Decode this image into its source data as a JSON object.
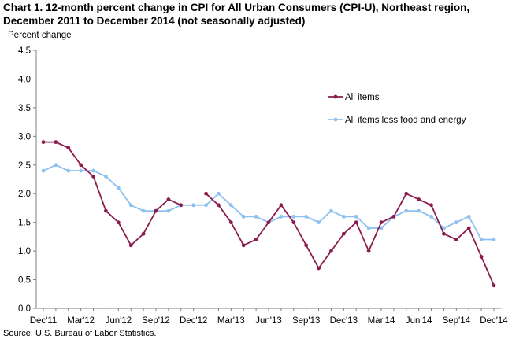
{
  "title": {
    "line1": "Chart 1. 12-month percent change in CPI for All Urban Consumers (CPI-U), Northeast region,",
    "line2": "December 2011 to December 2014 (not seasonally adjusted)"
  },
  "source": "Source: U.S. Bureau of Labor Statistics.",
  "colors": {
    "all_items": "#8b1c4f",
    "core": "#8ec0f0",
    "axis": "#808080"
  },
  "chart_data": {
    "type": "line",
    "ylabel": "Percent change",
    "xlabel": "",
    "ylim": [
      0,
      4.5
    ],
    "yticks": [
      "0.0",
      "0.5",
      "1.0",
      "1.5",
      "2.0",
      "2.5",
      "3.0",
      "3.5",
      "4.0",
      "4.5"
    ],
    "x": [
      "Dec'11",
      "Jan'12",
      "Feb'12",
      "Mar'12",
      "Apr'12",
      "May'12",
      "Jun'12",
      "Jul'12",
      "Aug'12",
      "Sep'12",
      "Oct'12",
      "Nov'12",
      "Dec'12",
      "Jan'13",
      "Feb'13",
      "Mar'13",
      "Apr'13",
      "May'13",
      "Jun'13",
      "Jul'13",
      "Aug'13",
      "Sep'13",
      "Oct'13",
      "Nov'13",
      "Dec'13",
      "Jan'14",
      "Feb'14",
      "Mar'14",
      "Apr'14",
      "May'14",
      "Jun'14",
      "Jul'14",
      "Aug'14",
      "Sep'14",
      "Oct'14",
      "Nov'14",
      "Dec'14"
    ],
    "xtick_labels": [
      "Dec'11",
      "Mar'12",
      "Jun'12",
      "Sep'12",
      "Dec'12",
      "Mar'13",
      "Jun'13",
      "Sep'13",
      "Dec'13",
      "Mar'14",
      "Jun'14",
      "Sep'14",
      "Dec'14"
    ],
    "grid": false,
    "legend_position": "top-right",
    "series": [
      {
        "name": "All items",
        "key": "all_items",
        "values": [
          2.9,
          2.9,
          2.8,
          2.5,
          2.3,
          1.7,
          1.5,
          1.1,
          1.3,
          1.7,
          1.9,
          1.8,
          null,
          2.0,
          1.8,
          1.5,
          1.1,
          1.2,
          1.5,
          1.8,
          1.5,
          1.1,
          0.7,
          1.0,
          1.3,
          1.5,
          1.0,
          1.5,
          1.6,
          2.0,
          1.9,
          1.8,
          1.3,
          1.2,
          1.4,
          0.9,
          0.4
        ]
      },
      {
        "name": "All items less food and energy",
        "key": "core",
        "values": [
          2.4,
          2.5,
          2.4,
          2.4,
          2.4,
          2.3,
          2.1,
          1.8,
          1.7,
          1.7,
          1.7,
          1.8,
          1.8,
          1.8,
          2.0,
          1.8,
          1.6,
          1.6,
          1.5,
          1.6,
          1.6,
          1.6,
          1.5,
          1.7,
          1.6,
          1.6,
          1.4,
          1.4,
          1.6,
          1.7,
          1.7,
          1.6,
          1.4,
          1.5,
          1.6,
          1.2,
          1.2
        ]
      }
    ]
  }
}
